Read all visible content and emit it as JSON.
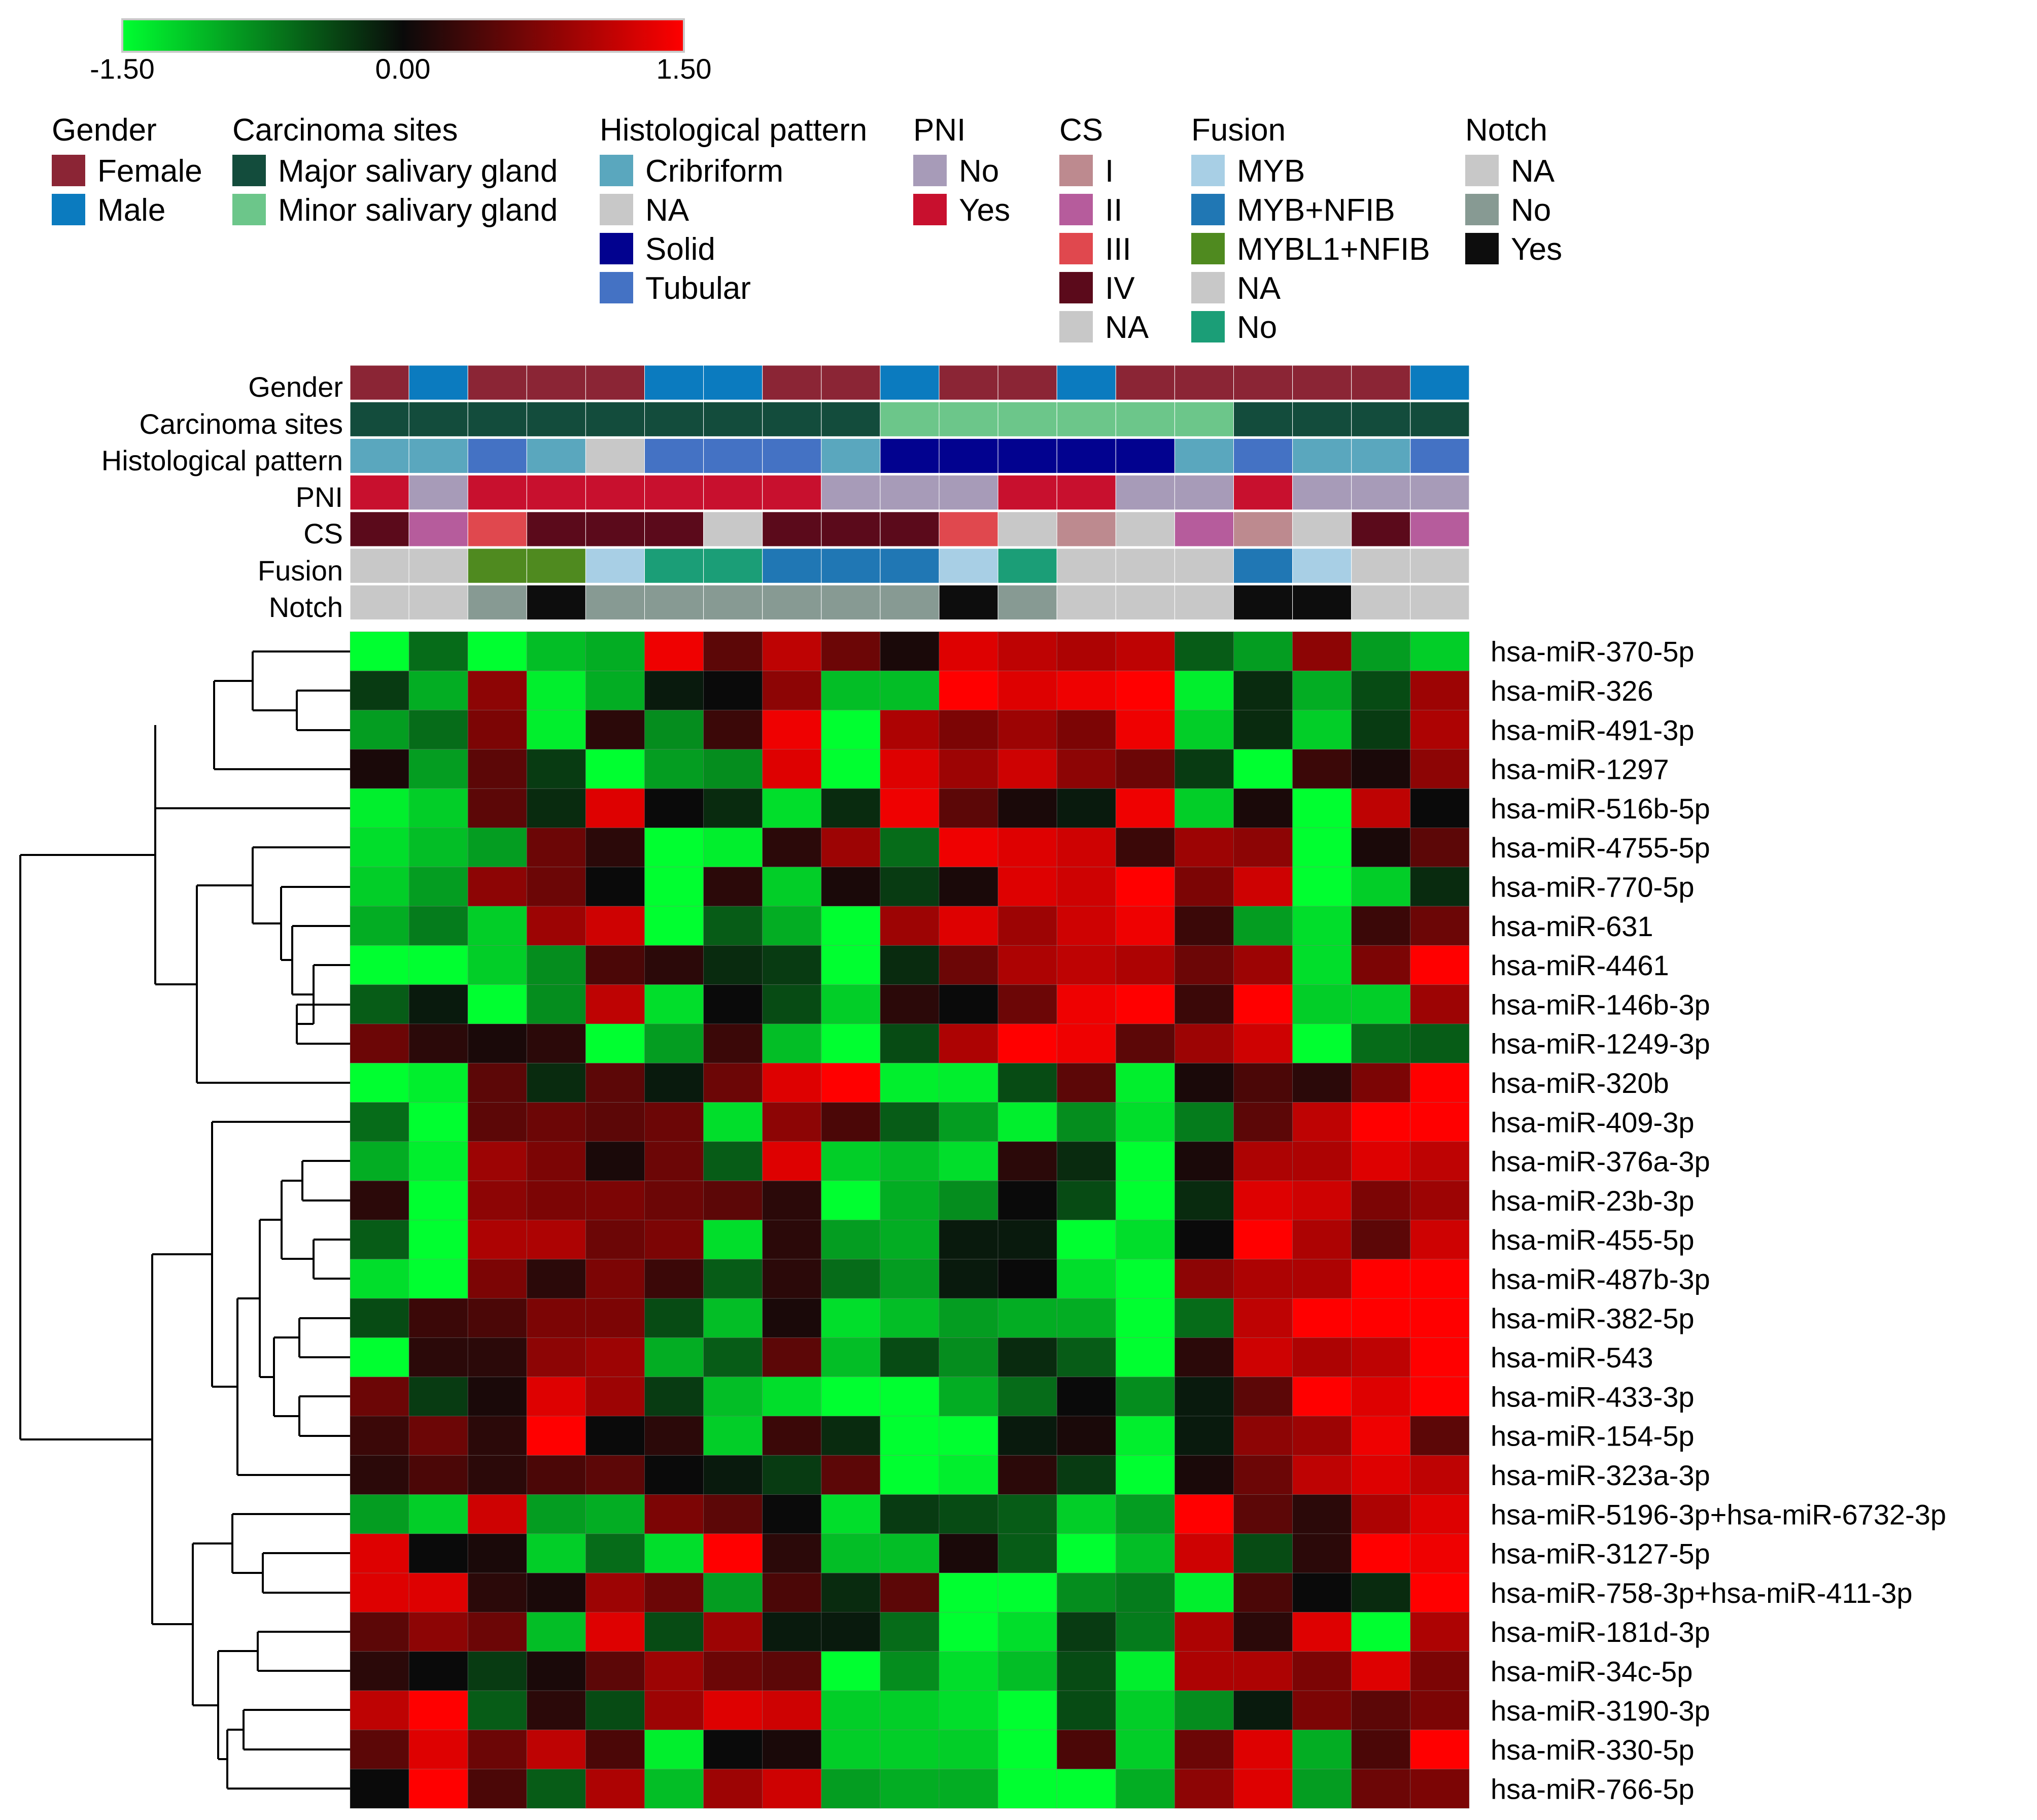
{
  "chart_data": {
    "type": "heatmap",
    "title": "",
    "color_scale": {
      "min": -1.5,
      "mid": 0.0,
      "max": 1.5,
      "min_label": "-1.50",
      "mid_label": "0.00",
      "max_label": "1.50",
      "low_color": "#00ff30",
      "mid_color": "#0a0a0a",
      "high_color": "#ff0000"
    },
    "legend": [
      {
        "title": "Gender",
        "items": [
          {
            "label": "Female",
            "color": "#8b2535"
          },
          {
            "label": "Male",
            "color": "#0b7bbf"
          }
        ]
      },
      {
        "title": "Carcinoma sites",
        "items": [
          {
            "label": "Major salivary gland",
            "color": "#134c3c"
          },
          {
            "label": "Minor salivary gland",
            "color": "#6cc68a"
          }
        ]
      },
      {
        "title": "Histological pattern",
        "items": [
          {
            "label": "Cribriform",
            "color": "#5aa7be"
          },
          {
            "label": "NA",
            "color": "#c8c8c8"
          },
          {
            "label": "Solid",
            "color": "#02028f"
          },
          {
            "label": "Tubular",
            "color": "#4472c4"
          }
        ]
      },
      {
        "title": "PNI",
        "items": [
          {
            "label": "No",
            "color": "#a79bb8"
          },
          {
            "label": "Yes",
            "color": "#c8102e"
          }
        ]
      },
      {
        "title": "CS",
        "items": [
          {
            "label": "I",
            "color": "#bd8a8f"
          },
          {
            "label": "II",
            "color": "#b65c9c"
          },
          {
            "label": "III",
            "color": "#e0484e"
          },
          {
            "label": "IV",
            "color": "#5b0a1b"
          },
          {
            "label": "NA",
            "color": "#c8c8c8"
          }
        ]
      },
      {
        "title": "Fusion",
        "items": [
          {
            "label": "MYB",
            "color": "#a8cfe5"
          },
          {
            "label": "MYB+NFIB",
            "color": "#2077b4"
          },
          {
            "label": "MYBL1+NFIB",
            "color": "#4f8a1f"
          },
          {
            "label": "NA",
            "color": "#c8c8c8"
          },
          {
            "label": "No",
            "color": "#1b9e77"
          }
        ]
      },
      {
        "title": "Notch",
        "items": [
          {
            "label": "NA",
            "color": "#c8c8c8"
          },
          {
            "label": "No",
            "color": "#879a93"
          },
          {
            "label": "Yes",
            "color": "#0d0d0d"
          }
        ]
      }
    ],
    "annotation_tracks": [
      {
        "name": "Gender",
        "values": [
          "Female",
          "Male",
          "Female",
          "Female",
          "Female",
          "Male",
          "Male",
          "Female",
          "Female",
          "Male",
          "Female",
          "Female",
          "Male",
          "Female",
          "Female",
          "Female",
          "Female",
          "Female",
          "Male"
        ]
      },
      {
        "name": "Carcinoma sites",
        "values": [
          "Major salivary gland",
          "Major salivary gland",
          "Major salivary gland",
          "Major salivary gland",
          "Major salivary gland",
          "Major salivary gland",
          "Major salivary gland",
          "Major salivary gland",
          "Major salivary gland",
          "Minor salivary gland",
          "Minor salivary gland",
          "Minor salivary gland",
          "Minor salivary gland",
          "Minor salivary gland",
          "Minor salivary gland",
          "Major salivary gland",
          "Major salivary gland",
          "Major salivary gland",
          "Major salivary gland"
        ]
      },
      {
        "name": "Histological pattern",
        "values": [
          "Cribriform",
          "Cribriform",
          "Tubular",
          "Cribriform",
          "NA",
          "Tubular",
          "Tubular",
          "Tubular",
          "Cribriform",
          "Solid",
          "Solid",
          "Solid",
          "Solid",
          "Solid",
          "Cribriform",
          "Tubular",
          "Cribriform",
          "Cribriform",
          "Tubular"
        ]
      },
      {
        "name": "PNI",
        "values": [
          "Yes",
          "No",
          "Yes",
          "Yes",
          "Yes",
          "Yes",
          "Yes",
          "Yes",
          "No",
          "No",
          "No",
          "Yes",
          "Yes",
          "No",
          "No",
          "Yes",
          "No",
          "No",
          "No"
        ]
      },
      {
        "name": "CS",
        "values": [
          "IV",
          "II",
          "III",
          "IV",
          "IV",
          "IV",
          "NA",
          "IV",
          "IV",
          "IV",
          "III",
          "NA",
          "I",
          "NA",
          "II",
          "I",
          "NA",
          "IV",
          "II"
        ]
      },
      {
        "name": "Fusion",
        "values": [
          "NA",
          "NA",
          "MYBL1+NFIB",
          "MYBL1+NFIB",
          "MYB",
          "No",
          "No",
          "MYB+NFIB",
          "MYB+NFIB",
          "MYB+NFIB",
          "MYB",
          "No",
          "NA",
          "NA",
          "NA",
          "MYB+NFIB",
          "MYB",
          "NA",
          "NA"
        ]
      },
      {
        "name": "Notch",
        "values": [
          "NA",
          "NA",
          "No",
          "Yes",
          "No",
          "No",
          "No",
          "No",
          "No",
          "No",
          "Yes",
          "No",
          "NA",
          "NA",
          "NA",
          "Yes",
          "Yes",
          "NA",
          "NA"
        ]
      }
    ],
    "rows": [
      "hsa-miR-370-5p",
      "hsa-miR-326",
      "hsa-miR-491-3p",
      "hsa-miR-1297",
      "hsa-miR-516b-5p",
      "hsa-miR-4755-5p",
      "hsa-miR-770-5p",
      "hsa-miR-631",
      "hsa-miR-4461",
      "hsa-miR-146b-3p",
      "hsa-miR-1249-3p",
      "hsa-miR-320b",
      "hsa-miR-409-3p",
      "hsa-miR-376a-3p",
      "hsa-miR-23b-3p",
      "hsa-miR-455-5p",
      "hsa-miR-487b-3p",
      "hsa-miR-382-5p",
      "hsa-miR-543",
      "hsa-miR-433-3p",
      "hsa-miR-154-5p",
      "hsa-miR-323a-3p",
      "hsa-miR-5196-3p+hsa-miR-6732-3p",
      "hsa-miR-3127-5p",
      "hsa-miR-758-3p+hsa-miR-411-3p",
      "hsa-miR-181d-3p",
      "hsa-miR-34c-5p",
      "hsa-miR-3190-3p",
      "hsa-miR-330-5p",
      "hsa-miR-766-5p"
    ],
    "values": [
      [
        -1.5,
        -0.6,
        -1.5,
        -1.1,
        -1.0,
        1.4,
        0.5,
        1.1,
        0.6,
        0.1,
        1.3,
        1.1,
        1.0,
        1.1,
        -0.5,
        -0.9,
        0.8,
        -0.9,
        -1.2
      ],
      [
        -0.3,
        -1.0,
        0.8,
        -1.4,
        -1.0,
        -0.1,
        0.0,
        0.8,
        -1.1,
        -1.1,
        1.5,
        1.3,
        1.4,
        1.5,
        -1.4,
        -0.2,
        -1.0,
        -0.4,
        0.9
      ],
      [
        -0.9,
        -0.6,
        0.7,
        -1.4,
        0.2,
        -0.8,
        0.3,
        1.4,
        -1.5,
        1.0,
        0.7,
        0.9,
        0.7,
        1.4,
        -1.2,
        -0.2,
        -1.2,
        -0.3,
        1.0
      ],
      [
        0.1,
        -0.9,
        0.5,
        -0.3,
        -1.5,
        -0.9,
        -0.8,
        1.3,
        -1.5,
        1.3,
        0.9,
        1.2,
        0.8,
        0.6,
        -0.3,
        -1.5,
        0.3,
        0.1,
        0.8
      ],
      [
        -1.4,
        -1.2,
        0.5,
        -0.2,
        1.3,
        0.0,
        -0.2,
        -1.3,
        -0.2,
        1.4,
        0.5,
        0.1,
        -0.1,
        1.4,
        -1.2,
        0.1,
        -1.5,
        1.1,
        0.0
      ],
      [
        -1.3,
        -1.1,
        -0.9,
        0.6,
        0.2,
        -1.5,
        -1.4,
        0.2,
        0.9,
        -0.6,
        1.4,
        1.3,
        1.2,
        0.3,
        0.9,
        0.8,
        -1.5,
        0.1,
        0.5
      ],
      [
        -1.2,
        -0.9,
        0.8,
        0.6,
        0.0,
        -1.5,
        0.2,
        -1.2,
        0.1,
        -0.3,
        0.1,
        1.3,
        1.2,
        1.5,
        0.7,
        1.2,
        -1.5,
        -1.2,
        -0.2
      ],
      [
        -1.0,
        -0.7,
        -1.2,
        0.9,
        1.2,
        -1.5,
        -0.5,
        -1.0,
        -1.5,
        0.9,
        1.3,
        0.9,
        1.2,
        1.4,
        0.3,
        -0.9,
        -1.3,
        0.3,
        0.6
      ],
      [
        -1.5,
        -1.5,
        -1.2,
        -0.8,
        0.4,
        0.2,
        -0.2,
        -0.3,
        -1.5,
        -0.2,
        0.6,
        1.0,
        1.1,
        1.0,
        0.6,
        0.9,
        -1.3,
        0.7,
        1.5
      ],
      [
        -0.5,
        -0.1,
        -1.5,
        -0.8,
        1.1,
        -1.3,
        0.0,
        -0.4,
        -1.2,
        0.2,
        0.0,
        0.6,
        1.4,
        1.5,
        0.3,
        1.5,
        -1.2,
        -1.2,
        0.9
      ],
      [
        0.6,
        0.2,
        0.1,
        0.2,
        -1.5,
        -0.9,
        0.3,
        -1.1,
        -1.5,
        -0.4,
        1.0,
        1.5,
        1.4,
        0.5,
        0.9,
        1.2,
        -1.5,
        -0.6,
        -0.5
      ],
      [
        -1.5,
        -1.4,
        0.5,
        -0.2,
        0.5,
        -0.1,
        0.6,
        1.3,
        1.5,
        -1.4,
        -1.4,
        -0.4,
        0.5,
        -1.4,
        0.1,
        0.4,
        0.2,
        0.7,
        1.5
      ],
      [
        -0.6,
        -1.5,
        0.5,
        0.6,
        0.5,
        0.6,
        -1.3,
        0.8,
        0.4,
        -0.5,
        -0.9,
        -1.4,
        -0.8,
        -1.3,
        -0.7,
        0.5,
        1.1,
        1.5,
        1.5
      ],
      [
        -1.0,
        -1.4,
        0.9,
        0.7,
        0.1,
        0.6,
        -0.5,
        1.3,
        -1.2,
        -1.1,
        -1.3,
        0.2,
        -0.2,
        -1.5,
        0.1,
        1.0,
        1.0,
        1.3,
        1.1
      ],
      [
        0.2,
        -1.5,
        0.8,
        0.7,
        0.7,
        0.6,
        0.5,
        0.2,
        -1.5,
        -1.0,
        -0.8,
        0.0,
        -0.4,
        -1.5,
        -0.2,
        1.3,
        1.2,
        0.7,
        0.9
      ],
      [
        -0.5,
        -1.5,
        1.0,
        1.0,
        0.6,
        0.7,
        -1.3,
        0.2,
        -0.9,
        -1.0,
        -0.1,
        -0.1,
        -1.5,
        -1.3,
        0.0,
        1.5,
        1.0,
        0.5,
        1.2
      ],
      [
        -1.3,
        -1.5,
        0.7,
        0.2,
        0.7,
        0.3,
        -0.5,
        0.2,
        -0.6,
        -0.9,
        -0.1,
        0.0,
        -1.3,
        -1.5,
        0.8,
        1.0,
        1.0,
        1.5,
        1.5
      ],
      [
        -0.4,
        0.3,
        0.4,
        0.7,
        0.7,
        -0.4,
        -1.1,
        0.1,
        -1.3,
        -1.1,
        -0.9,
        -1.0,
        -1.0,
        -1.5,
        -0.6,
        1.1,
        1.5,
        1.5,
        1.5
      ],
      [
        -1.5,
        0.2,
        0.2,
        0.8,
        0.9,
        -1.0,
        -0.5,
        0.5,
        -1.1,
        -0.4,
        -0.8,
        -0.2,
        -0.5,
        -1.5,
        0.2,
        1.2,
        1.0,
        1.1,
        1.5
      ],
      [
        0.6,
        -0.3,
        0.1,
        1.3,
        0.9,
        -0.3,
        -1.1,
        -1.3,
        -1.5,
        -1.5,
        -1.0,
        -0.6,
        0.0,
        -0.8,
        -0.1,
        0.5,
        1.5,
        1.3,
        1.5
      ],
      [
        0.3,
        0.6,
        0.2,
        1.5,
        0.0,
        0.2,
        -1.2,
        0.3,
        -0.2,
        -1.5,
        -1.5,
        -0.1,
        0.1,
        -1.4,
        -0.1,
        0.8,
        0.9,
        1.4,
        0.5
      ],
      [
        0.2,
        0.4,
        0.2,
        0.4,
        0.5,
        0.0,
        -0.1,
        -0.3,
        0.5,
        -1.5,
        -1.4,
        0.2,
        -0.3,
        -1.5,
        0.1,
        0.6,
        1.1,
        1.3,
        1.1
      ],
      [
        -0.9,
        -1.2,
        1.2,
        -0.9,
        -1.0,
        0.7,
        0.5,
        0.0,
        -1.3,
        -0.3,
        -0.4,
        -0.5,
        -1.2,
        -0.9,
        1.5,
        0.5,
        0.2,
        1.0,
        1.3
      ],
      [
        1.3,
        0.0,
        0.1,
        -1.2,
        -0.6,
        -1.3,
        1.5,
        0.2,
        -1.1,
        -1.1,
        0.1,
        -0.5,
        -1.5,
        -1.1,
        1.2,
        -0.4,
        0.2,
        1.5,
        1.4
      ],
      [
        1.3,
        1.3,
        0.2,
        0.1,
        0.9,
        0.6,
        -0.9,
        0.4,
        -0.2,
        0.5,
        -1.5,
        -1.5,
        -0.8,
        -0.7,
        -1.4,
        0.4,
        0.0,
        -0.2,
        1.5
      ],
      [
        0.5,
        0.8,
        0.6,
        -1.1,
        1.3,
        -0.4,
        0.9,
        -0.1,
        -0.1,
        -0.6,
        -1.5,
        -1.3,
        -0.3,
        -0.7,
        1.0,
        0.2,
        1.3,
        -1.5,
        1.0
      ],
      [
        0.2,
        0.0,
        -0.3,
        0.1,
        0.5,
        0.9,
        0.6,
        0.5,
        -1.5,
        -0.8,
        -1.3,
        -1.1,
        -0.4,
        -1.4,
        1.0,
        1.0,
        0.7,
        1.3,
        0.7
      ],
      [
        1.1,
        1.5,
        -0.5,
        0.2,
        -0.4,
        0.9,
        1.3,
        1.2,
        -1.2,
        -1.2,
        -1.3,
        -1.5,
        -0.4,
        -1.2,
        -0.8,
        -0.1,
        0.7,
        0.5,
        0.7
      ],
      [
        0.5,
        1.3,
        0.6,
        1.1,
        0.4,
        -1.4,
        0.0,
        0.1,
        -1.2,
        -1.2,
        -1.2,
        -1.5,
        0.4,
        -1.2,
        0.6,
        1.3,
        -1.0,
        0.4,
        1.5
      ],
      [
        0.0,
        1.5,
        0.4,
        -0.5,
        1.0,
        -1.1,
        0.9,
        1.2,
        -0.9,
        -1.0,
        -1.0,
        -1.5,
        -1.5,
        -1.0,
        0.8,
        1.3,
        -0.9,
        0.6,
        0.7
      ]
    ]
  }
}
